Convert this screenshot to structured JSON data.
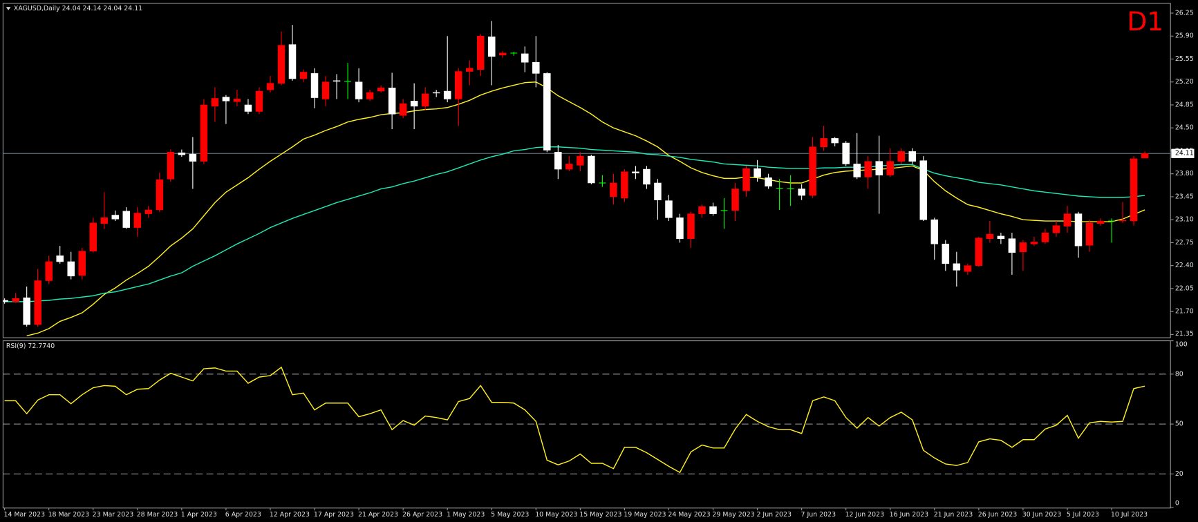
{
  "chart_data": [
    {
      "type": "candlestick",
      "title": "XAGUSD,Daily  24.04 24.14 24.04 24.11",
      "annotation": "D1",
      "last_price": 24.11,
      "up_color": "#ff0000",
      "down_color": "#ffffff",
      "flat_color": "#00ff00",
      "last_price_color": "#708090",
      "ylim": [
        21.3,
        26.4
      ],
      "yticks": [
        26.25,
        {
          "value": 25.9,
          "label": "25.90"
        },
        25.55,
        {
          "value": 25.2,
          "label": "25.20"
        },
        24.85,
        {
          "value": 24.5,
          "label": "24.50"
        },
        24.15,
        {
          "value": 23.8,
          "label": "23.80"
        },
        23.45,
        {
          "value": 23.1,
          "label": "23.10"
        },
        22.75,
        {
          "value": 22.4,
          "label": "22.40"
        },
        22.05,
        {
          "value": 21.7,
          "label": "21.70"
        },
        21.35
      ],
      "categories": [
        "14 Mar 2023",
        null,
        null,
        null,
        "18 Mar 2023",
        null,
        null,
        null,
        "23 Mar 2023",
        null,
        null,
        null,
        "28 Mar 2023",
        null,
        null,
        null,
        "1 Apr 2023",
        null,
        null,
        null,
        "6 Apr 2023",
        null,
        null,
        null,
        "12 Apr 2023",
        null,
        null,
        null,
        "17 Apr 2023",
        null,
        null,
        null,
        "21 Apr 2023",
        null,
        null,
        null,
        "26 Apr 2023",
        null,
        null,
        null,
        "1 May 2023",
        null,
        null,
        null,
        "5 May 2023",
        null,
        null,
        null,
        "10 May 2023",
        null,
        null,
        null,
        "15 May 2023",
        null,
        null,
        null,
        "19 May 2023",
        null,
        null,
        null,
        "24 May 2023",
        null,
        null,
        null,
        "29 May 2023",
        null,
        null,
        null,
        "2 Jun 2023",
        null,
        null,
        null,
        "7 Jun 2023",
        null,
        null,
        null,
        "12 Jun 2023",
        null,
        null,
        null,
        "16 Jun 2023",
        null,
        null,
        null,
        "21 Jun 2023",
        null,
        null,
        null,
        "26 Jun 2023",
        null,
        null,
        null,
        "30 Jun 2023",
        null,
        null,
        null,
        "5 Jul 2023",
        null,
        null,
        null,
        "10 Jul 2023",
        null,
        null,
        null
      ],
      "open": [
        21.87,
        21.85,
        21.91,
        21.5,
        22.17,
        22.55,
        22.46,
        22.25,
        22.62,
        23.04,
        23.17,
        23.23,
        22.98,
        23.19,
        23.25,
        23.72,
        24.12,
        24.1,
        23.99,
        24.83,
        24.97,
        24.9,
        24.85,
        24.75,
        25.08,
        25.18,
        25.77,
        25.25,
        25.33,
        24.94,
        25.22,
        25.21,
        25.2,
        24.94,
        25.06,
        25.11,
        24.69,
        24.91,
        24.83,
        25.04,
        25.06,
        24.94,
        25.36,
        25.39,
        25.89,
        25.61,
        25.64,
        25.63,
        25.5,
        25.33,
        24.13,
        23.87,
        23.93,
        24.07,
        23.66,
        23.45,
        23.43,
        23.83,
        23.87,
        23.66,
        23.39,
        23.13,
        22.81,
        23.19,
        23.3,
        23.24,
        23.24,
        23.54,
        23.88,
        23.74,
        23.58,
        23.57,
        23.57,
        23.47,
        24.21,
        24.34,
        24.27,
        23.95,
        23.75,
        23.99,
        23.78,
        23.99,
        24.14,
        24.0,
        23.1,
        22.73,
        22.43,
        22.31,
        22.4,
        22.81,
        22.85,
        22.81,
        22.61,
        22.73,
        22.76,
        22.9,
        23.0,
        23.19,
        22.71,
        23.04,
        23.08,
        23.08,
        23.08,
        24.04
      ],
      "high": [
        21.9,
        21.98,
        22.08,
        22.35,
        22.55,
        22.7,
        22.61,
        22.67,
        23.13,
        23.52,
        23.24,
        23.29,
        23.29,
        23.31,
        23.82,
        24.17,
        24.17,
        24.36,
        24.94,
        25.12,
        25.0,
        25.08,
        24.94,
        25.12,
        25.29,
        25.97,
        26.07,
        25.39,
        25.41,
        25.29,
        25.32,
        25.49,
        25.41,
        25.08,
        25.15,
        25.34,
        24.94,
        25.18,
        25.12,
        25.08,
        25.9,
        25.41,
        25.53,
        25.93,
        26.13,
        25.67,
        25.66,
        25.74,
        25.9,
        25.35,
        24.24,
        24.07,
        24.13,
        24.09,
        23.78,
        23.8,
        23.87,
        23.92,
        23.92,
        23.72,
        23.48,
        23.19,
        23.22,
        23.33,
        23.36,
        23.43,
        23.66,
        23.92,
        24.01,
        23.8,
        23.72,
        23.78,
        23.64,
        24.36,
        24.53,
        24.36,
        24.3,
        24.42,
        24.07,
        24.38,
        24.19,
        24.19,
        24.19,
        24.07,
        23.13,
        22.79,
        22.61,
        22.43,
        22.84,
        23.08,
        22.9,
        22.9,
        22.79,
        22.84,
        22.96,
        23.08,
        23.31,
        23.22,
        23.1,
        23.12,
        23.12,
        23.37,
        24.07,
        24.14
      ],
      "low": [
        21.82,
        21.83,
        21.47,
        21.47,
        22.12,
        22.43,
        22.19,
        22.19,
        22.6,
        22.96,
        23.08,
        22.96,
        22.84,
        23.13,
        23.22,
        23.68,
        24.06,
        23.57,
        23.95,
        24.59,
        24.56,
        24.83,
        24.71,
        24.71,
        25.04,
        25.15,
        25.22,
        25.2,
        24.8,
        24.83,
        24.94,
        24.94,
        24.89,
        24.91,
        25.04,
        24.48,
        24.65,
        24.48,
        24.77,
        24.97,
        24.89,
        24.53,
        25.15,
        25.29,
        25.15,
        25.57,
        25.6,
        25.35,
        25.12,
        24.13,
        23.72,
        23.84,
        23.84,
        23.64,
        23.6,
        23.33,
        23.37,
        23.72,
        23.57,
        23.1,
        23.08,
        22.75,
        22.67,
        23.13,
        23.16,
        22.96,
        23.08,
        23.45,
        23.68,
        23.57,
        23.25,
        23.31,
        23.4,
        23.43,
        24.15,
        24.22,
        23.92,
        23.72,
        23.57,
        23.19,
        23.75,
        23.95,
        23.95,
        23.08,
        22.49,
        22.32,
        22.08,
        22.26,
        22.38,
        22.75,
        22.73,
        22.26,
        22.32,
        22.7,
        22.73,
        22.84,
        22.9,
        22.52,
        22.61,
        23.01,
        22.75,
        23.05,
        23.01,
        24.04
      ],
      "close": [
        21.85,
        21.9,
        21.5,
        22.17,
        22.46,
        22.46,
        22.24,
        22.62,
        23.05,
        23.13,
        23.11,
        22.98,
        23.2,
        23.25,
        23.71,
        24.13,
        24.09,
        23.99,
        24.85,
        24.95,
        24.91,
        24.94,
        24.75,
        25.06,
        25.18,
        25.76,
        25.25,
        25.35,
        24.96,
        25.2,
        25.21,
        25.21,
        24.94,
        25.04,
        25.11,
        24.71,
        24.87,
        24.83,
        25.02,
        25.03,
        24.94,
        25.36,
        25.41,
        25.9,
        25.59,
        25.64,
        25.64,
        25.5,
        25.33,
        24.16,
        23.87,
        23.95,
        24.07,
        23.66,
        23.66,
        23.66,
        23.83,
        23.81,
        23.64,
        23.4,
        23.13,
        22.81,
        23.19,
        23.3,
        23.19,
        23.24,
        23.57,
        23.88,
        23.75,
        23.61,
        23.58,
        23.57,
        23.47,
        24.21,
        24.34,
        24.27,
        23.95,
        23.75,
        23.99,
        23.78,
        23.99,
        24.14,
        23.99,
        23.1,
        22.73,
        22.43,
        22.33,
        22.4,
        22.82,
        22.88,
        22.81,
        22.6,
        22.75,
        22.76,
        22.9,
        23.01,
        23.19,
        22.7,
        23.05,
        23.08,
        23.08,
        23.09,
        24.03,
        24.11
      ],
      "lines": [
        {
          "color": "#ffee22",
          "values": [
            null,
            null,
            21.33,
            21.37,
            21.44,
            21.55,
            21.61,
            21.68,
            21.81,
            21.96,
            22.06,
            22.18,
            22.28,
            22.39,
            22.54,
            22.7,
            22.82,
            22.96,
            23.16,
            23.36,
            23.52,
            23.63,
            23.74,
            23.87,
            23.99,
            24.1,
            24.21,
            24.33,
            24.39,
            24.46,
            24.52,
            24.59,
            24.63,
            24.66,
            24.7,
            24.72,
            24.73,
            24.76,
            24.78,
            24.79,
            24.81,
            24.86,
            24.92,
            25.0,
            25.06,
            25.11,
            25.15,
            25.19,
            25.2,
            25.11,
            24.99,
            24.9,
            24.81,
            24.71,
            24.59,
            24.5,
            24.44,
            24.38,
            24.3,
            24.21,
            24.08,
            23.99,
            23.89,
            23.82,
            23.77,
            23.73,
            23.73,
            23.75,
            23.74,
            23.71,
            23.68,
            23.66,
            23.66,
            23.72,
            23.78,
            23.82,
            23.84,
            23.85,
            23.86,
            23.87,
            23.88,
            23.9,
            23.92,
            23.85,
            23.68,
            23.54,
            23.43,
            23.33,
            23.29,
            23.24,
            23.19,
            23.15,
            23.1,
            23.09,
            23.08,
            23.08,
            23.08,
            23.07,
            23.07,
            23.07,
            23.07,
            23.11,
            23.18,
            23.25
          ]
        },
        {
          "color": "#1de9b6",
          "values": [
            21.85,
            21.85,
            21.85,
            21.86,
            21.87,
            21.89,
            21.9,
            21.92,
            21.94,
            21.98,
            22.0,
            22.04,
            22.08,
            22.12,
            22.18,
            22.24,
            22.29,
            22.39,
            22.47,
            22.55,
            22.64,
            22.73,
            22.81,
            22.89,
            22.98,
            23.05,
            23.12,
            23.18,
            23.24,
            23.3,
            23.36,
            23.41,
            23.46,
            23.51,
            23.57,
            23.6,
            23.65,
            23.69,
            23.74,
            23.79,
            23.83,
            23.89,
            23.95,
            24.01,
            24.06,
            24.1,
            24.15,
            24.17,
            24.2,
            24.21,
            24.21,
            24.2,
            24.19,
            24.17,
            24.16,
            24.15,
            24.14,
            24.13,
            24.1,
            24.09,
            24.07,
            24.05,
            24.02,
            24.0,
            23.98,
            23.95,
            23.94,
            23.93,
            23.92,
            23.9,
            23.89,
            23.88,
            23.88,
            23.88,
            23.89,
            23.89,
            23.9,
            23.9,
            23.9,
            23.92,
            23.93,
            23.94,
            23.94,
            23.87,
            23.81,
            23.77,
            23.74,
            23.71,
            23.67,
            23.65,
            23.63,
            23.6,
            23.57,
            23.54,
            23.52,
            23.5,
            23.48,
            23.46,
            23.45,
            23.44,
            23.44,
            23.44,
            23.45,
            23.47
          ]
        }
      ]
    },
    {
      "type": "line",
      "title": "RSI(9) 72.7740",
      "color": "#ffee22",
      "ylim": [
        0,
        100
      ],
      "yticks": [
        0,
        20,
        50,
        80,
        100
      ],
      "levels": [
        20,
        50,
        80
      ],
      "values": [
        64,
        64,
        56.2,
        64.4,
        67.6,
        67.6,
        62.2,
        67.6,
        71.8,
        73.1,
        72.7,
        67.6,
        70.9,
        71.3,
        76.4,
        80.5,
        78.2,
        75.9,
        83.2,
        83.7,
        81.8,
        81.8,
        74.5,
        78.2,
        79.1,
        84.1,
        67.6,
        68.6,
        58.5,
        62.6,
        62.6,
        62.6,
        54.4,
        56.2,
        58.5,
        46.6,
        52.1,
        49.3,
        54.8,
        53.9,
        52.5,
        63.5,
        65.3,
        73.1,
        63,
        63,
        62.6,
        58.5,
        51.6,
        28.3,
        25.5,
        27.8,
        32,
        26.4,
        26.4,
        23.2,
        36,
        36,
        32.8,
        28.7,
        24.6,
        20.9,
        33.3,
        37.4,
        35.6,
        35.6,
        47,
        55.7,
        51.6,
        48.4,
        46.6,
        46.6,
        44.3,
        64,
        66.3,
        64,
        53.9,
        47.5,
        53.9,
        48.8,
        53.9,
        57.1,
        52.5,
        34.2,
        29.6,
        26,
        25.1,
        26.9,
        39.3,
        41.1,
        40.2,
        36,
        40.6,
        40.6,
        47,
        49.3,
        55.2,
        41.5,
        50.7,
        51.6,
        51.2,
        51.6,
        71.3,
        72.77
      ]
    }
  ]
}
